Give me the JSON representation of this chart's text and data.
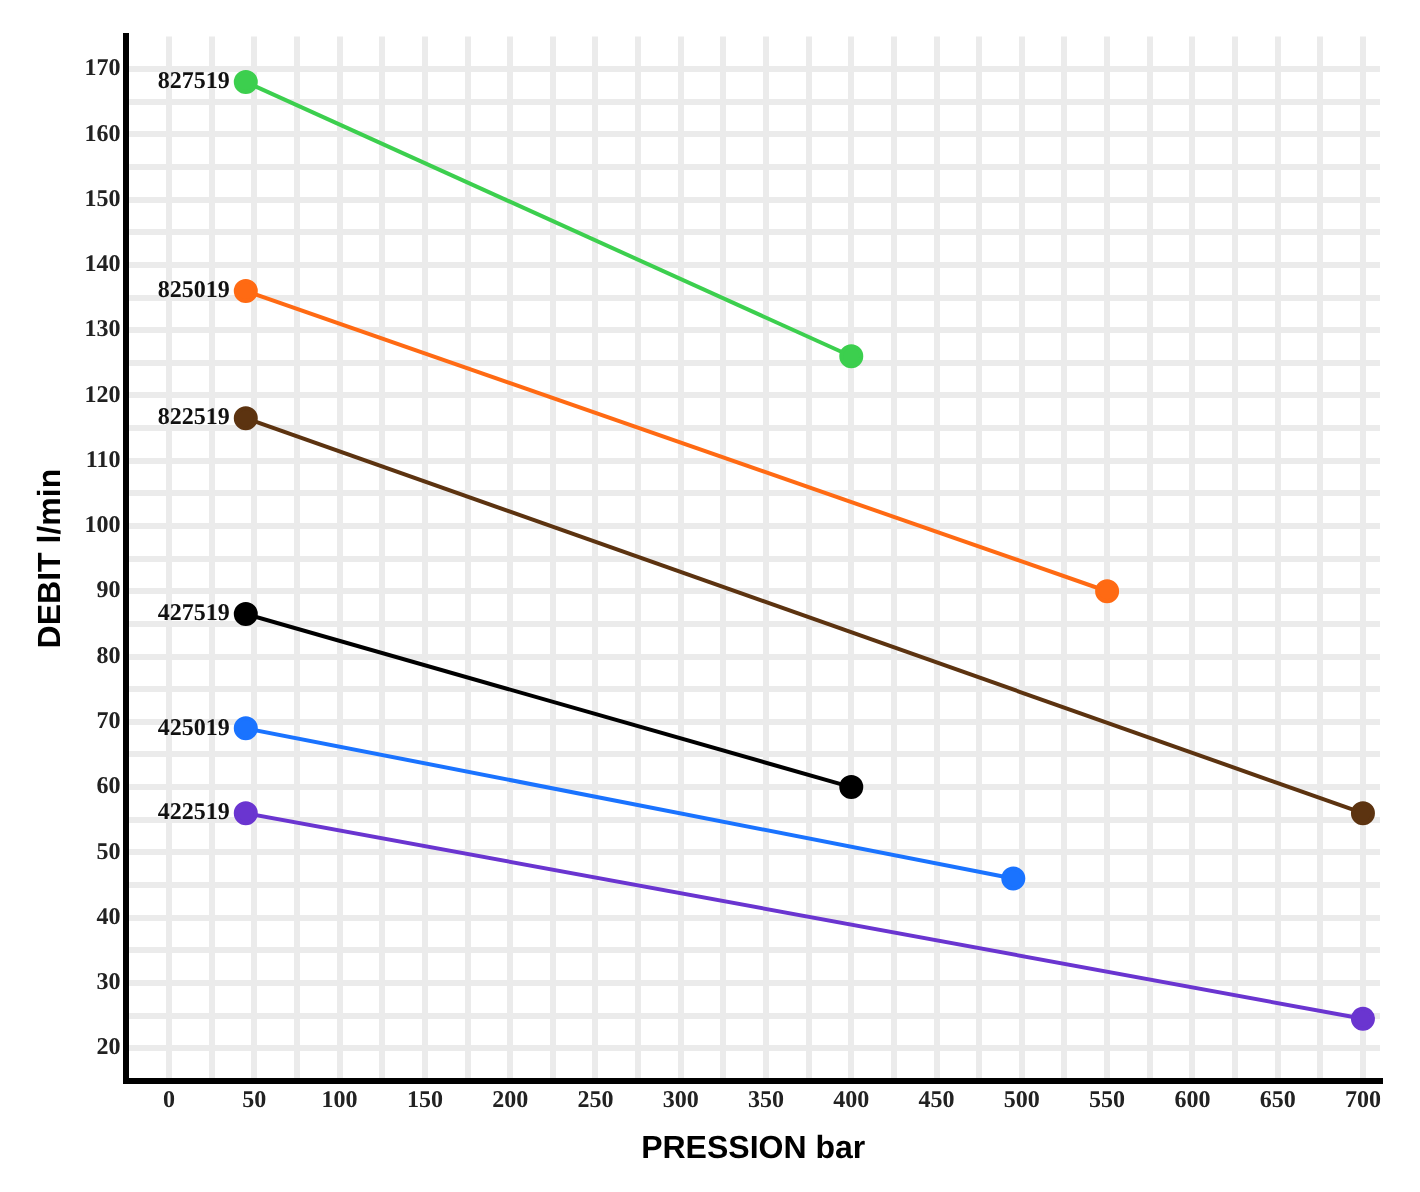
{
  "chart_data": {
    "type": "line",
    "xlabel": "PRESSION bar",
    "ylabel": "DEBIT l/min",
    "xlim": [
      -25,
      710
    ],
    "ylim": [
      15,
      175
    ],
    "xticks": [
      0,
      {
        "value": 25,
        "label": null
      },
      50,
      {
        "value": 75,
        "label": null
      },
      100,
      {
        "value": 125,
        "label": null
      },
      150,
      {
        "value": 175,
        "label": null
      },
      200,
      {
        "value": 225,
        "label": null
      },
      250,
      {
        "value": 275,
        "label": null
      },
      300,
      {
        "value": 325,
        "label": null
      },
      350,
      {
        "value": 375,
        "label": null
      },
      400,
      {
        "value": 425,
        "label": null
      },
      450,
      {
        "value": 475,
        "label": null
      },
      500,
      {
        "value": 525,
        "label": null
      },
      550,
      {
        "value": 575,
        "label": null
      },
      600,
      {
        "value": 625,
        "label": null
      },
      650,
      {
        "value": 675,
        "label": null
      },
      700
    ],
    "yticks": [
      20,
      {
        "value": 25,
        "label": null
      },
      30,
      {
        "value": 35,
        "label": null
      },
      40,
      {
        "value": 45,
        "label": null
      },
      50,
      {
        "value": 55,
        "label": null
      },
      60,
      {
        "value": 65,
        "label": null
      },
      70,
      {
        "value": 75,
        "label": null
      },
      80,
      {
        "value": 85,
        "label": null
      },
      90,
      {
        "value": 95,
        "label": null
      },
      100,
      {
        "value": 105,
        "label": null
      },
      110,
      {
        "value": 115,
        "label": null
      },
      120,
      {
        "value": 125,
        "label": null
      },
      130,
      {
        "value": 135,
        "label": null
      },
      140,
      {
        "value": 145,
        "label": null
      },
      150,
      {
        "value": 155,
        "label": null
      },
      160,
      {
        "value": 165,
        "label": null
      },
      170
    ],
    "grid": true,
    "legend": false,
    "marker": "circle",
    "line_style": "solid",
    "series": [
      {
        "name": "827519",
        "color": "#3ccf4e",
        "x": [
          45,
          400
        ],
        "values": [
          168,
          126
        ]
      },
      {
        "name": "825019",
        "color": "#ff6a13",
        "x": [
          45,
          550
        ],
        "values": [
          136,
          90
        ]
      },
      {
        "name": "822519",
        "color": "#5c3310",
        "x": [
          45,
          700
        ],
        "values": [
          116.5,
          56
        ]
      },
      {
        "name": "427519",
        "color": "#000000",
        "x": [
          45,
          400
        ],
        "values": [
          86.5,
          60
        ]
      },
      {
        "name": "425019",
        "color": "#1a73ff",
        "x": [
          45,
          495
        ],
        "values": [
          69,
          46
        ]
      },
      {
        "name": "422519",
        "color": "#6a35d0",
        "x": [
          45,
          700
        ],
        "values": [
          56,
          24.5
        ]
      }
    ]
  }
}
